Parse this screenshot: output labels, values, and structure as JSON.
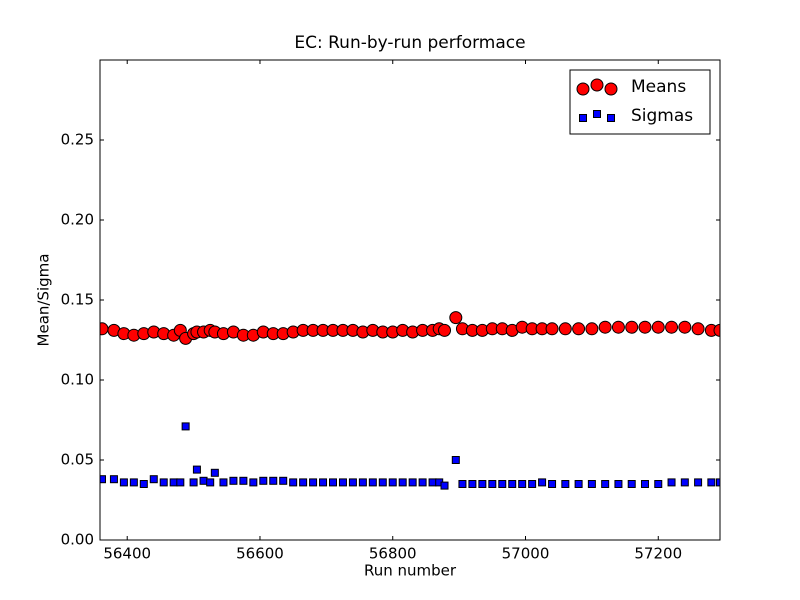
{
  "chart_data": {
    "type": "scatter",
    "title": "EC: Run-by-run performace",
    "x_label": "Run number",
    "y_label": "Mean/Sigma",
    "x": [
      56362,
      56380,
      56395,
      56410,
      56425,
      56440,
      56455,
      56470,
      56480,
      56488,
      56500,
      56505,
      56515,
      56525,
      56532,
      56545,
      56560,
      56575,
      56590,
      56605,
      56620,
      56635,
      56650,
      56665,
      56680,
      56695,
      56710,
      56725,
      56740,
      56755,
      56770,
      56785,
      56800,
      56815,
      56830,
      56845,
      56860,
      56870,
      56878,
      56895,
      56905,
      56920,
      56935,
      56950,
      56965,
      56980,
      56995,
      57010,
      57025,
      57040,
      57060,
      57080,
      57100,
      57120,
      57140,
      57160,
      57180,
      57200,
      57220,
      57240,
      57260,
      57280,
      57293
    ],
    "series": [
      {
        "name": "Means",
        "color": "#ff0000",
        "marker": "circle",
        "values": [
          0.132,
          0.131,
          0.129,
          0.128,
          0.129,
          0.13,
          0.129,
          0.128,
          0.131,
          0.126,
          0.129,
          0.13,
          0.13,
          0.131,
          0.13,
          0.129,
          0.13,
          0.128,
          0.128,
          0.13,
          0.129,
          0.129,
          0.13,
          0.131,
          0.131,
          0.131,
          0.131,
          0.131,
          0.131,
          0.13,
          0.131,
          0.13,
          0.13,
          0.131,
          0.13,
          0.131,
          0.131,
          0.132,
          0.131,
          0.139,
          0.132,
          0.131,
          0.131,
          0.132,
          0.132,
          0.131,
          0.133,
          0.132,
          0.132,
          0.132,
          0.132,
          0.132,
          0.132,
          0.133,
          0.133,
          0.133,
          0.133,
          0.133,
          0.133,
          0.133,
          0.132,
          0.131,
          0.131
        ]
      },
      {
        "name": "Sigmas",
        "color": "#0000ff",
        "marker": "square",
        "values": [
          0.038,
          0.038,
          0.036,
          0.036,
          0.035,
          0.038,
          0.036,
          0.036,
          0.036,
          0.071,
          0.036,
          0.044,
          0.037,
          0.036,
          0.042,
          0.036,
          0.037,
          0.037,
          0.036,
          0.037,
          0.037,
          0.037,
          0.036,
          0.036,
          0.036,
          0.036,
          0.036,
          0.036,
          0.036,
          0.036,
          0.036,
          0.036,
          0.036,
          0.036,
          0.036,
          0.036,
          0.036,
          0.036,
          0.034,
          0.05,
          0.035,
          0.035,
          0.035,
          0.035,
          0.035,
          0.035,
          0.035,
          0.035,
          0.036,
          0.035,
          0.035,
          0.035,
          0.035,
          0.035,
          0.035,
          0.035,
          0.035,
          0.035,
          0.036,
          0.036,
          0.036,
          0.036,
          0.036
        ]
      }
    ],
    "xlim": [
      56359,
      57293
    ],
    "ylim": [
      0,
      0.3
    ],
    "xticks": [
      56400,
      56600,
      56800,
      57000,
      57200
    ],
    "yticks": [
      {
        "value": 0,
        "label": "0.00"
      },
      {
        "value": 0.05,
        "label": "0.05"
      },
      {
        "value": 0.1,
        "label": "0.10"
      },
      {
        "value": 0.15,
        "label": "0.15"
      },
      {
        "value": 0.2,
        "label": "0.20"
      },
      {
        "value": 0.25,
        "label": "0.25"
      }
    ],
    "legend": "upper right",
    "grid": false
  }
}
